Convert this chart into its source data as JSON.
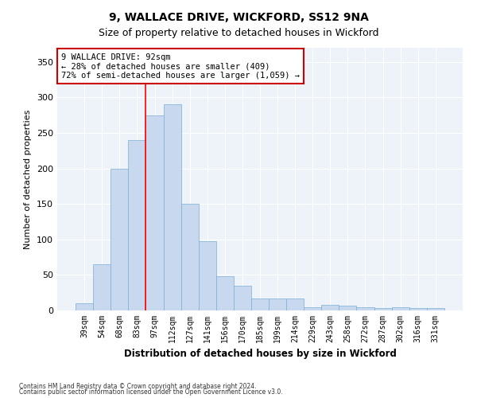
{
  "title": "9, WALLACE DRIVE, WICKFORD, SS12 9NA",
  "subtitle": "Size of property relative to detached houses in Wickford",
  "xlabel": "Distribution of detached houses by size in Wickford",
  "ylabel": "Number of detached properties",
  "categories": [
    "39sqm",
    "54sqm",
    "68sqm",
    "83sqm",
    "97sqm",
    "112sqm",
    "127sqm",
    "141sqm",
    "156sqm",
    "170sqm",
    "185sqm",
    "199sqm",
    "214sqm",
    "229sqm",
    "243sqm",
    "258sqm",
    "272sqm",
    "287sqm",
    "302sqm",
    "316sqm",
    "331sqm"
  ],
  "values": [
    10,
    65,
    200,
    240,
    275,
    290,
    150,
    97,
    48,
    35,
    17,
    17,
    17,
    5,
    8,
    7,
    5,
    3,
    5,
    3,
    3
  ],
  "bar_color": "#c8d9ef",
  "bar_edge_color": "#7aafd4",
  "red_line_x": 3.5,
  "annotation_text": "9 WALLACE DRIVE: 92sqm\n← 28% of detached houses are smaller (409)\n72% of semi-detached houses are larger (1,059) →",
  "annotation_box_color": "#ffffff",
  "annotation_box_edge": "#cc0000",
  "ylim": [
    0,
    370
  ],
  "yticks": [
    0,
    50,
    100,
    150,
    200,
    250,
    300,
    350
  ],
  "background_color": "#eef2f9",
  "footnote1": "Contains HM Land Registry data © Crown copyright and database right 2024.",
  "footnote2": "Contains public sector information licensed under the Open Government Licence v3.0."
}
